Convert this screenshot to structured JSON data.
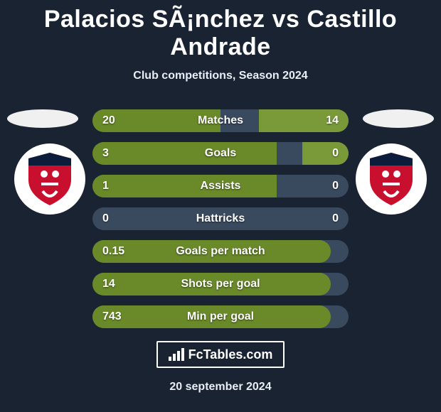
{
  "title": "Palacios SÃ¡nchez vs Castillo Andrade",
  "subtitle": "Club competitions, Season 2024",
  "date": "20 september 2024",
  "footer_label": "FcTables.com",
  "colors": {
    "background": "#1a2332",
    "track": "#3a4a5e",
    "left_bar": "#6a8a2a",
    "right_bar": "#7a9a3a",
    "flag": "#f0f0f0",
    "logo_bg": "#ffffff",
    "crest_main": "#c8102e",
    "crest_dark": "#0b1d3a"
  },
  "rows": [
    {
      "label": "Matches",
      "left_val": "20",
      "right_val": "14",
      "left_pct": 50,
      "right_pct": 35
    },
    {
      "label": "Goals",
      "left_val": "3",
      "right_val": "0",
      "left_pct": 72,
      "right_pct": 18
    },
    {
      "label": "Assists",
      "left_val": "1",
      "right_val": "0",
      "left_pct": 72,
      "right_pct": 0
    },
    {
      "label": "Hattricks",
      "left_val": "0",
      "right_val": "0",
      "left_pct": 0,
      "right_pct": 0
    },
    {
      "label": "Goals per match",
      "left_val": "0.15",
      "right_val": "",
      "left_pct": 93,
      "right_pct": 0
    },
    {
      "label": "Shots per goal",
      "left_val": "14",
      "right_val": "",
      "left_pct": 93,
      "right_pct": 0
    },
    {
      "label": "Min per goal",
      "left_val": "743",
      "right_val": "",
      "left_pct": 93,
      "right_pct": 0
    }
  ]
}
